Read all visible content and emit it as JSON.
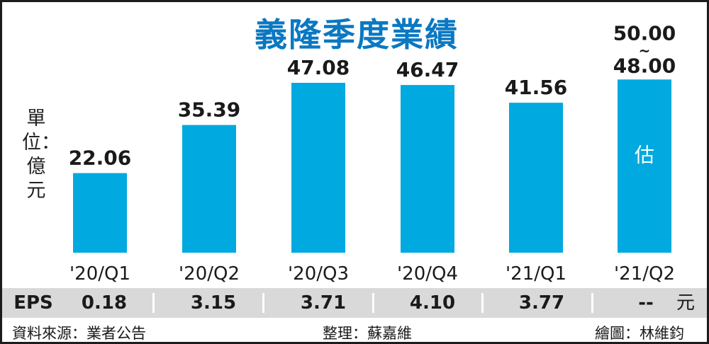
{
  "chart_data": {
    "type": "bar",
    "title": "義隆季度業績",
    "unit_label": "單位：億元",
    "categories": [
      "'20/Q1",
      "'20/Q2",
      "'20/Q3",
      "'20/Q4",
      "'21/Q1",
      "'21/Q2"
    ],
    "values": [
      22.06,
      35.39,
      47.08,
      46.47,
      41.56,
      48.0
    ],
    "value_labels": [
      "22.06",
      "35.39",
      "47.08",
      "46.47",
      "41.56",
      "48.00"
    ],
    "estimate": {
      "category": "'21/Q2",
      "low": 48.0,
      "high": 50.0,
      "high_label": "50.00",
      "range_mark": "~",
      "low_label": "48.00",
      "bar_text": "估"
    },
    "ylim": [
      0,
      55
    ],
    "grid": false,
    "colors": {
      "bar": "#00a9e0",
      "title": "#0a78c2",
      "eps_band": "#d9d9d9"
    }
  },
  "eps": {
    "label": "EPS",
    "values": [
      "0.18",
      "3.15",
      "3.71",
      "4.10",
      "3.77",
      "--"
    ],
    "unit": "元"
  },
  "footer": {
    "source": "資料來源：業者公告",
    "editor": "整理：蘇嘉維",
    "artist": "繪圖：林維鈞"
  }
}
